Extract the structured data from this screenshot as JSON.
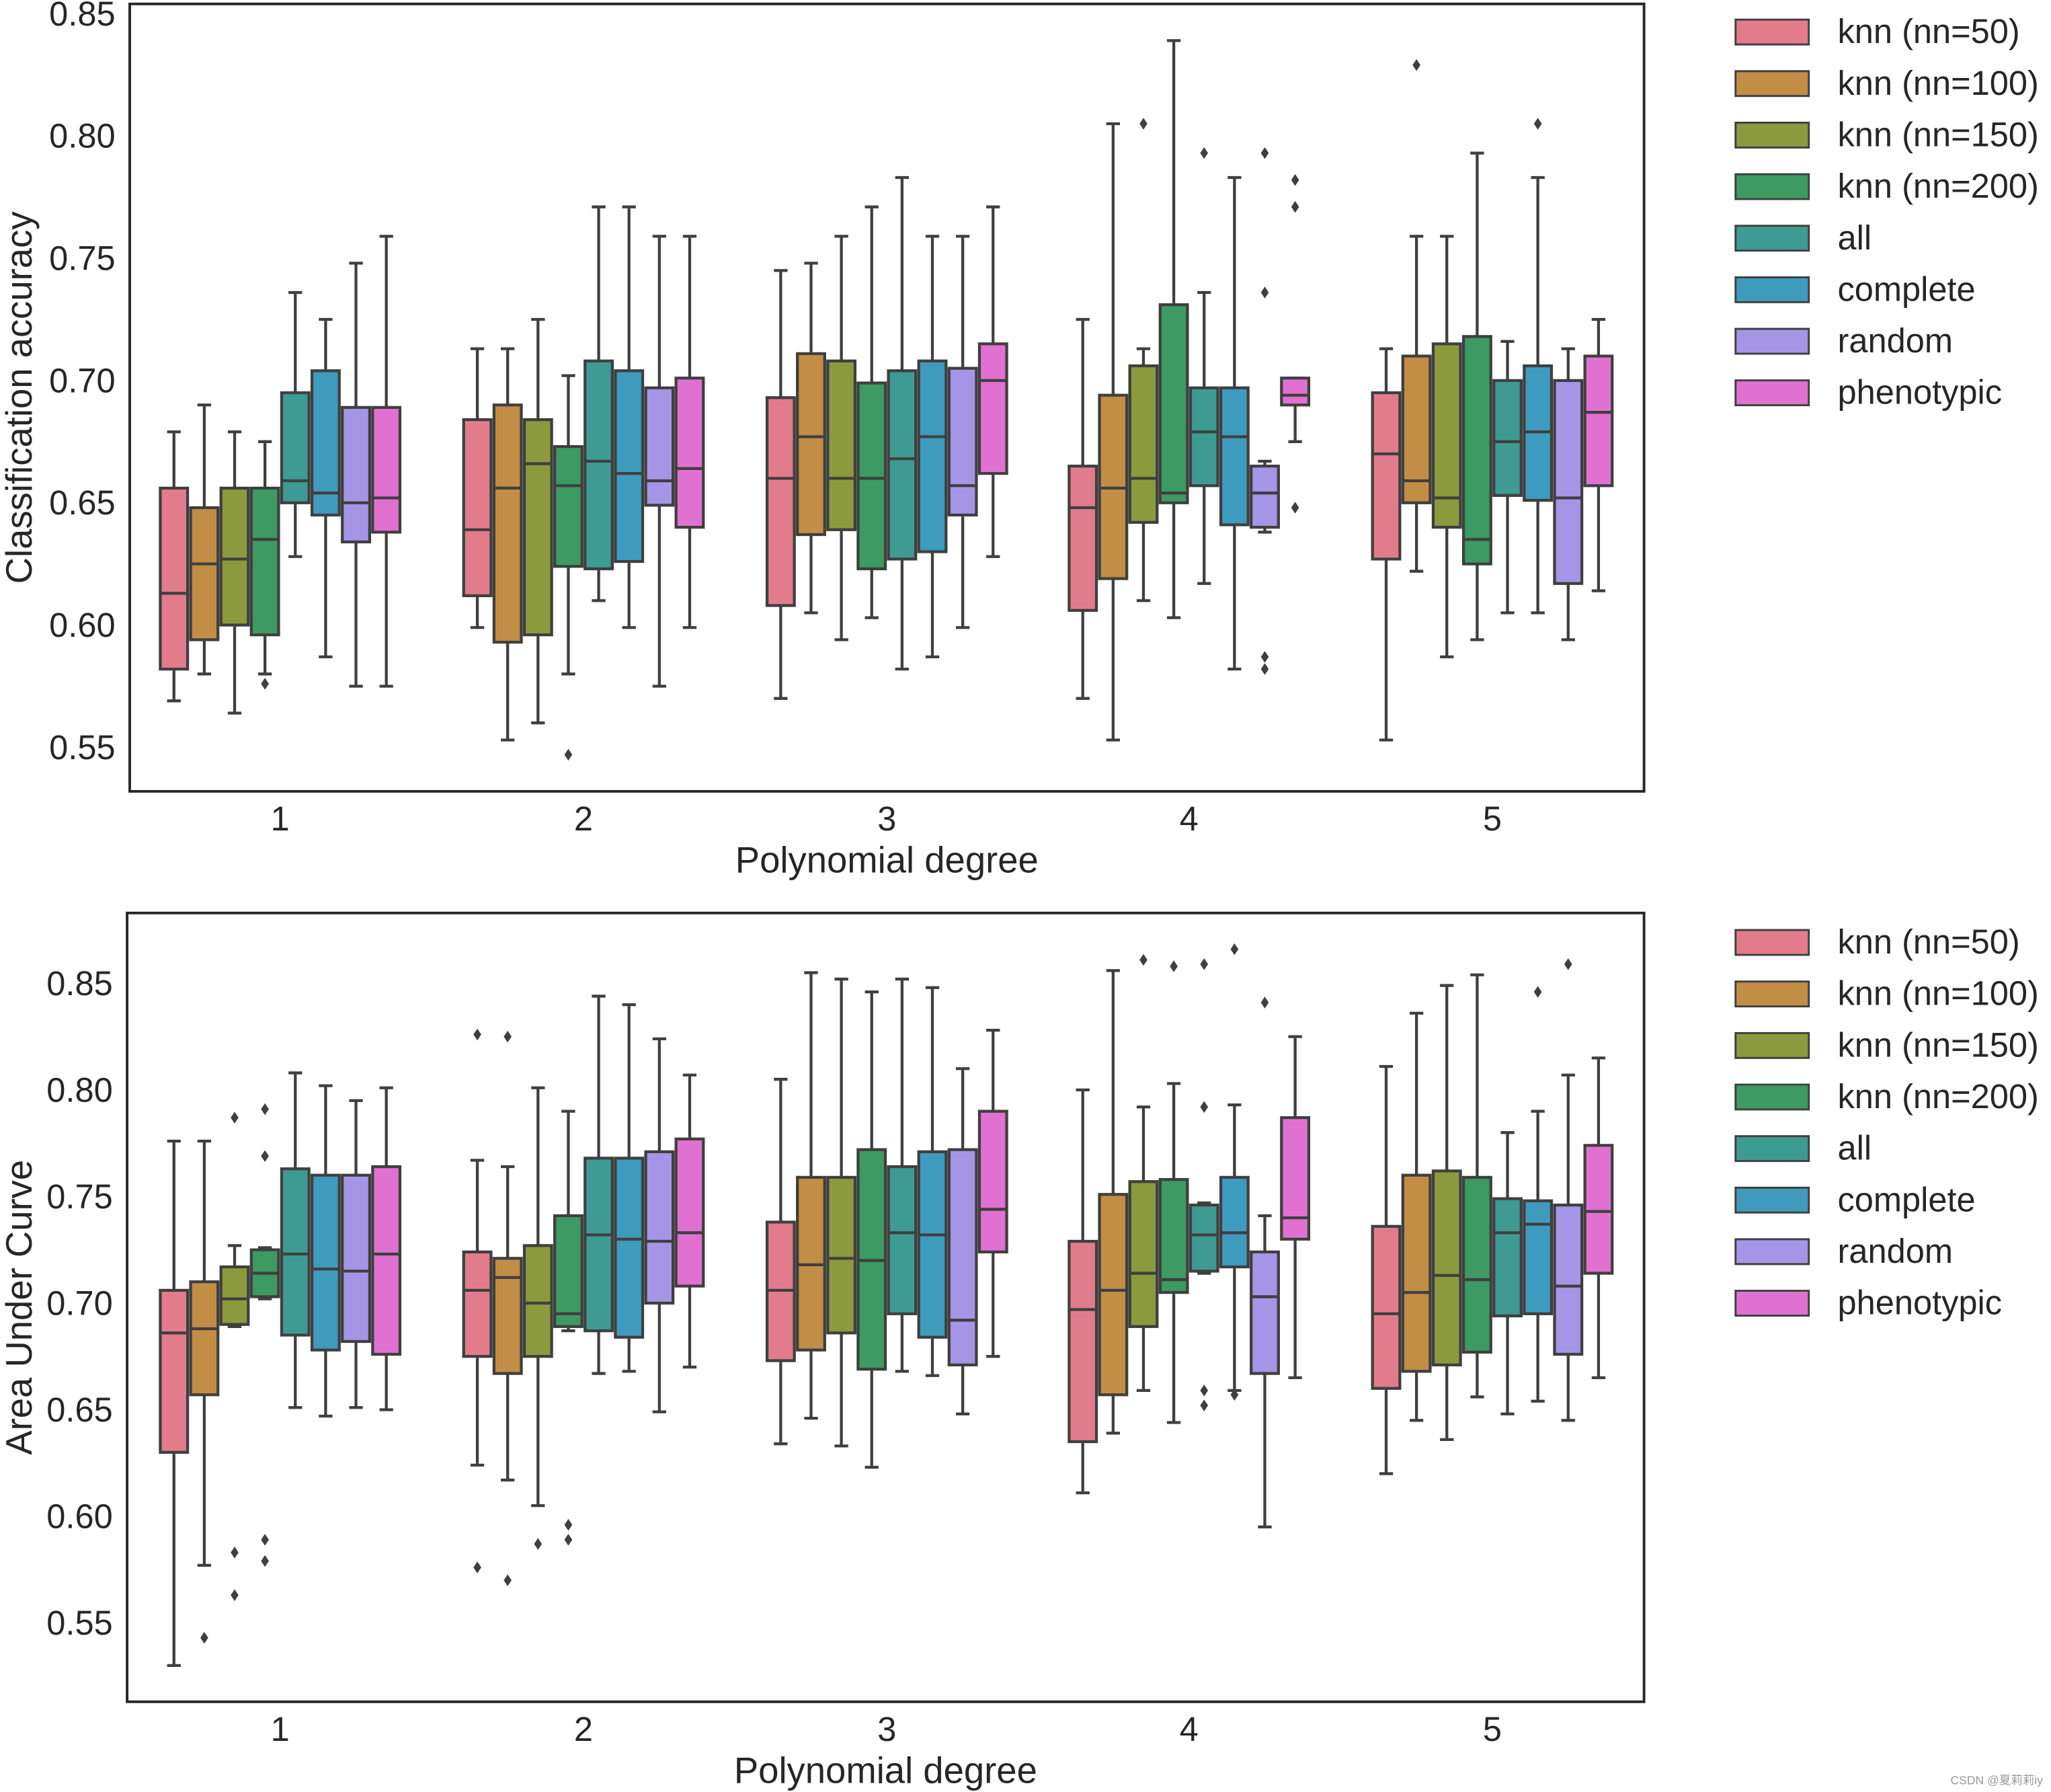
{
  "watermark": "CSDN @夏莉莉iy",
  "chart_data": [
    {
      "type": "box",
      "xlabel": "Polynomial degree",
      "ylabel": "Classification accuracy",
      "categories": [
        "1",
        "2",
        "3",
        "4",
        "5"
      ],
      "ylim": [
        0.532,
        0.854
      ],
      "yticks": [
        "0.55",
        "0.60",
        "0.65",
        "0.70",
        "0.75",
        "0.80",
        "0.85"
      ],
      "grid": false,
      "legend_placement": "outside-right",
      "stat_order": [
        "whisker_low",
        "q1",
        "median",
        "q3",
        "whisker_high"
      ],
      "series": [
        {
          "name": "knn (nn=50)",
          "color": "#e27c8c",
          "stats": [
            [
              0.569,
              0.582,
              0.613,
              0.656,
              0.679
            ],
            [
              0.599,
              0.612,
              0.639,
              0.684,
              0.713
            ],
            [
              0.57,
              0.608,
              0.66,
              0.693,
              0.745
            ],
            [
              0.57,
              0.606,
              0.648,
              0.665,
              0.725
            ],
            [
              0.553,
              0.627,
              0.67,
              0.695,
              0.713
            ]
          ],
          "fliers": [
            [],
            [],
            [],
            [],
            []
          ]
        },
        {
          "name": "knn (nn=100)",
          "color": "#c28d45",
          "stats": [
            [
              0.58,
              0.594,
              0.625,
              0.648,
              0.69
            ],
            [
              0.553,
              0.593,
              0.656,
              0.69,
              0.713
            ],
            [
              0.605,
              0.637,
              0.677,
              0.711,
              0.748
            ],
            [
              0.553,
              0.619,
              0.656,
              0.694,
              0.805
            ],
            [
              0.622,
              0.65,
              0.659,
              0.71,
              0.759
            ]
          ],
          "fliers": [
            [],
            [],
            [],
            [],
            [
              0.829
            ]
          ]
        },
        {
          "name": "knn (nn=150)",
          "color": "#8c9a3e",
          "stats": [
            [
              0.564,
              0.6,
              0.627,
              0.656,
              0.679
            ],
            [
              0.56,
              0.596,
              0.666,
              0.684,
              0.725
            ],
            [
              0.594,
              0.639,
              0.66,
              0.708,
              0.759
            ],
            [
              0.61,
              0.642,
              0.66,
              0.706,
              0.713
            ],
            [
              0.587,
              0.64,
              0.652,
              0.715,
              0.759
            ]
          ],
          "fliers": [
            [],
            [],
            [],
            [
              0.805
            ],
            []
          ]
        },
        {
          "name": "knn (nn=200)",
          "color": "#3d9a62",
          "stats": [
            [
              0.58,
              0.596,
              0.635,
              0.656,
              0.675
            ],
            [
              0.58,
              0.624,
              0.657,
              0.673,
              0.702
            ],
            [
              0.603,
              0.623,
              0.66,
              0.699,
              0.771
            ],
            [
              0.603,
              0.65,
              0.654,
              0.731,
              0.839
            ],
            [
              0.594,
              0.625,
              0.635,
              0.718,
              0.793
            ]
          ],
          "fliers": [
            [
              0.576
            ],
            [
              0.547
            ],
            [],
            [],
            []
          ]
        },
        {
          "name": "all",
          "color": "#3d9b93",
          "stats": [
            [
              0.628,
              0.65,
              0.659,
              0.695,
              0.736
            ],
            [
              0.61,
              0.623,
              0.667,
              0.708,
              0.771
            ],
            [
              0.582,
              0.627,
              0.668,
              0.704,
              0.783
            ],
            [
              0.617,
              0.657,
              0.679,
              0.697,
              0.736
            ],
            [
              0.605,
              0.653,
              0.675,
              0.7,
              0.716
            ]
          ],
          "fliers": [
            [],
            [],
            [],
            [
              0.793
            ],
            []
          ]
        },
        {
          "name": "complete",
          "color": "#3f9bbd",
          "stats": [
            [
              0.587,
              0.645,
              0.654,
              0.704,
              0.725
            ],
            [
              0.599,
              0.626,
              0.662,
              0.704,
              0.771
            ],
            [
              0.587,
              0.63,
              0.677,
              0.708,
              0.759
            ],
            [
              0.582,
              0.641,
              0.677,
              0.697,
              0.783
            ],
            [
              0.605,
              0.651,
              0.679,
              0.706,
              0.783
            ]
          ],
          "fliers": [
            [],
            [],
            [],
            [],
            [
              0.805
            ]
          ]
        },
        {
          "name": "random",
          "color": "#a595e6",
          "stats": [
            [
              0.575,
              0.634,
              0.65,
              0.689,
              0.748
            ],
            [
              0.575,
              0.649,
              0.659,
              0.697,
              0.759
            ],
            [
              0.599,
              0.645,
              0.657,
              0.705,
              0.759
            ],
            [
              0.638,
              0.64,
              0.654,
              0.665,
              0.667
            ],
            [
              0.594,
              0.617,
              0.652,
              0.7,
              0.713
            ]
          ],
          "fliers": [
            [],
            [],
            [],
            [
              0.793,
              0.736,
              0.587,
              0.582
            ],
            []
          ]
        },
        {
          "name": "phenotypic",
          "color": "#e171d0",
          "stats": [
            [
              0.575,
              0.638,
              0.652,
              0.689,
              0.759
            ],
            [
              0.599,
              0.64,
              0.664,
              0.701,
              0.759
            ],
            [
              0.628,
              0.662,
              0.7,
              0.715,
              0.771
            ],
            [
              0.675,
              0.69,
              0.694,
              0.701,
              0.701
            ],
            [
              0.614,
              0.657,
              0.687,
              0.71,
              0.725
            ]
          ],
          "fliers": [
            [],
            [],
            [],
            [
              0.782,
              0.771,
              0.648
            ],
            []
          ]
        }
      ]
    },
    {
      "type": "box",
      "xlabel": "Polynomial degree",
      "ylabel": "Area Under Curve",
      "categories": [
        "1",
        "2",
        "3",
        "4",
        "5"
      ],
      "ylim": [
        0.513,
        0.883
      ],
      "yticks": [
        "0.55",
        "0.60",
        "0.65",
        "0.70",
        "0.75",
        "0.80",
        "0.85"
      ],
      "grid": false,
      "legend_placement": "outside-right",
      "stat_order": [
        "whisker_low",
        "q1",
        "median",
        "q3",
        "whisker_high"
      ],
      "series": [
        {
          "name": "knn (nn=50)",
          "color": "#e27c8c",
          "stats": [
            [
              0.53,
              0.63,
              0.686,
              0.706,
              0.776
            ],
            [
              0.624,
              0.675,
              0.706,
              0.724,
              0.767
            ],
            [
              0.634,
              0.673,
              0.706,
              0.738,
              0.805
            ],
            [
              0.611,
              0.635,
              0.697,
              0.729,
              0.8
            ],
            [
              0.62,
              0.66,
              0.695,
              0.736,
              0.811
            ]
          ],
          "fliers": [
            [],
            [
              0.826,
              0.576
            ],
            [],
            [],
            []
          ]
        },
        {
          "name": "knn (nn=100)",
          "color": "#c28d45",
          "stats": [
            [
              0.577,
              0.657,
              0.688,
              0.71,
              0.776
            ],
            [
              0.617,
              0.667,
              0.712,
              0.721,
              0.764
            ],
            [
              0.646,
              0.678,
              0.718,
              0.759,
              0.855
            ],
            [
              0.639,
              0.657,
              0.706,
              0.751,
              0.856
            ],
            [
              0.645,
              0.668,
              0.705,
              0.76,
              0.836
            ]
          ],
          "fliers": [
            [
              0.543
            ],
            [
              0.825,
              0.57
            ],
            [],
            [],
            []
          ]
        },
        {
          "name": "knn (nn=150)",
          "color": "#8c9a3e",
          "stats": [
            [
              0.689,
              0.69,
              0.702,
              0.717,
              0.727
            ],
            [
              0.605,
              0.675,
              0.7,
              0.727,
              0.801
            ],
            [
              0.633,
              0.686,
              0.721,
              0.759,
              0.852
            ],
            [
              0.659,
              0.689,
              0.714,
              0.757,
              0.792
            ],
            [
              0.636,
              0.671,
              0.713,
              0.762,
              0.849
            ]
          ],
          "fliers": [
            [
              0.787,
              0.583,
              0.563
            ],
            [
              0.587
            ],
            [],
            [
              0.861
            ],
            []
          ]
        },
        {
          "name": "knn (nn=200)",
          "color": "#3d9a62",
          "stats": [
            [
              0.702,
              0.703,
              0.714,
              0.725,
              0.726
            ],
            [
              0.687,
              0.689,
              0.695,
              0.741,
              0.79
            ],
            [
              0.623,
              0.669,
              0.72,
              0.772,
              0.846
            ],
            [
              0.644,
              0.705,
              0.711,
              0.758,
              0.803
            ],
            [
              0.656,
              0.677,
              0.711,
              0.759,
              0.854
            ]
          ],
          "fliers": [
            [
              0.791,
              0.769,
              0.589,
              0.579
            ],
            [
              0.596,
              0.589
            ],
            [],
            [
              0.858
            ],
            []
          ]
        },
        {
          "name": "all",
          "color": "#3d9b93",
          "stats": [
            [
              0.651,
              0.685,
              0.723,
              0.763,
              0.808
            ],
            [
              0.667,
              0.687,
              0.732,
              0.768,
              0.844
            ],
            [
              0.668,
              0.695,
              0.733,
              0.764,
              0.852
            ],
            [
              0.714,
              0.715,
              0.732,
              0.746,
              0.747
            ],
            [
              0.648,
              0.694,
              0.733,
              0.749,
              0.78
            ]
          ],
          "fliers": [
            [],
            [],
            [],
            [
              0.859,
              0.792,
              0.659,
              0.652
            ],
            []
          ]
        },
        {
          "name": "complete",
          "color": "#3f9bbd",
          "stats": [
            [
              0.647,
              0.678,
              0.716,
              0.76,
              0.802
            ],
            [
              0.668,
              0.684,
              0.73,
              0.768,
              0.84
            ],
            [
              0.666,
              0.684,
              0.732,
              0.771,
              0.848
            ],
            [
              0.659,
              0.717,
              0.733,
              0.759,
              0.793
            ],
            [
              0.654,
              0.695,
              0.737,
              0.748,
              0.79
            ]
          ],
          "fliers": [
            [],
            [],
            [],
            [
              0.866,
              0.657
            ],
            [
              0.846
            ]
          ]
        },
        {
          "name": "random",
          "color": "#a595e6",
          "stats": [
            [
              0.651,
              0.682,
              0.715,
              0.76,
              0.795
            ],
            [
              0.649,
              0.7,
              0.729,
              0.771,
              0.824
            ],
            [
              0.648,
              0.671,
              0.692,
              0.772,
              0.81
            ],
            [
              0.595,
              0.667,
              0.703,
              0.724,
              0.741
            ],
            [
              0.645,
              0.676,
              0.708,
              0.746,
              0.807
            ]
          ],
          "fliers": [
            [],
            [],
            [],
            [
              0.841
            ],
            [
              0.859
            ]
          ]
        },
        {
          "name": "phenotypic",
          "color": "#e171d0",
          "stats": [
            [
              0.65,
              0.676,
              0.723,
              0.764,
              0.801
            ],
            [
              0.67,
              0.708,
              0.733,
              0.777,
              0.807
            ],
            [
              0.675,
              0.724,
              0.744,
              0.79,
              0.828
            ],
            [
              0.665,
              0.73,
              0.74,
              0.787,
              0.825
            ],
            [
              0.665,
              0.714,
              0.743,
              0.774,
              0.815
            ]
          ],
          "fliers": [
            [],
            [],
            [],
            [],
            []
          ]
        }
      ]
    }
  ]
}
